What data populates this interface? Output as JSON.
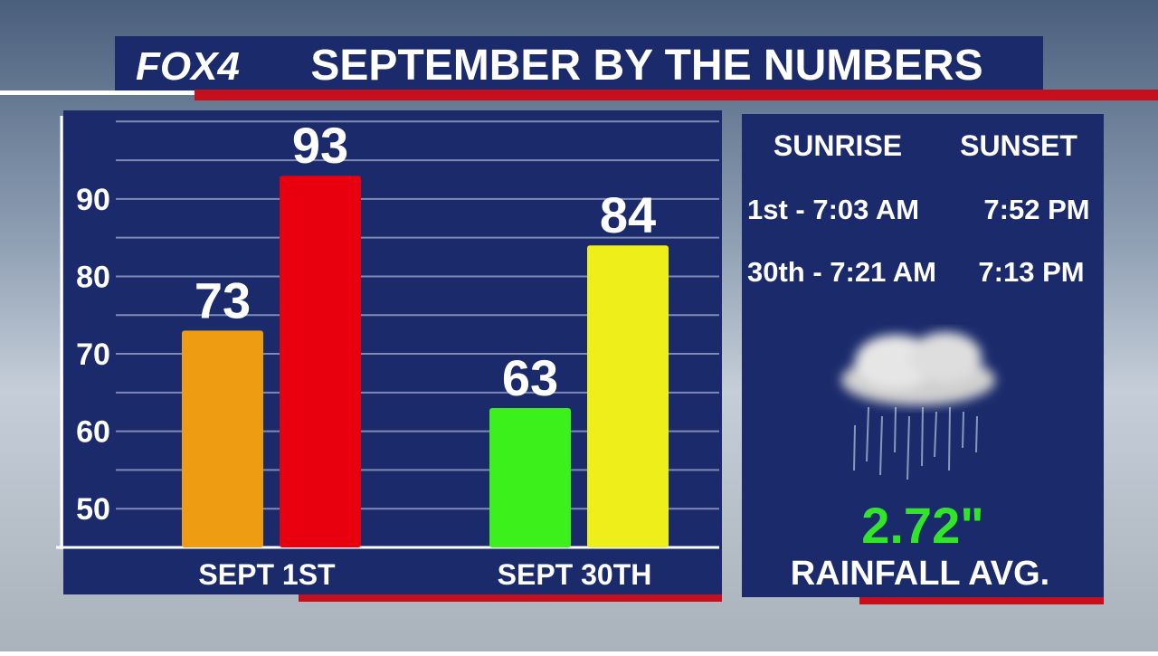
{
  "header": {
    "logo": "FOX4",
    "title": "SEPTEMBER BY THE NUMBERS"
  },
  "chart_data": {
    "type": "bar",
    "categories": [
      "SEPT 1ST",
      "SEPT 30TH"
    ],
    "series": [
      {
        "colors": [
          "#ee9c12",
          "#3cf01c"
        ],
        "values": [
          73,
          63
        ]
      },
      {
        "colors": [
          "#e8000f",
          "#eeee1a"
        ],
        "values": [
          93,
          84
        ]
      }
    ],
    "ylim": [
      45,
      100.5
    ],
    "yticks": [
      50,
      60,
      70,
      80,
      90
    ],
    "minor_yticks": [
      55,
      65,
      75,
      85,
      95,
      100
    ],
    "grid": true
  },
  "sun_table": {
    "headers": [
      "SUNRISE",
      "SUNSET"
    ],
    "rows": [
      [
        "1st -  7:03 AM",
        "7:52 PM"
      ],
      [
        "30th - 7:21 AM",
        "7:13 PM"
      ]
    ]
  },
  "rainfall": {
    "value": "2.72\"",
    "label": "RAINFALL AVG."
  }
}
